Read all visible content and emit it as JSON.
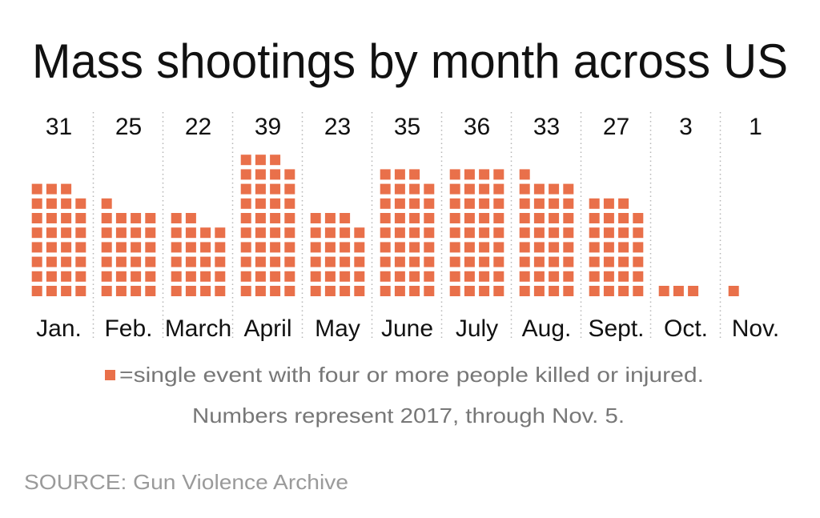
{
  "chart_data": {
    "type": "bar",
    "title": "Mass shootings by month across US",
    "categories": [
      "Jan.",
      "Feb.",
      "March",
      "April",
      "May",
      "June",
      "July",
      "Aug.",
      "Sept.",
      "Oct.",
      "Nov."
    ],
    "values": [
      31,
      25,
      22,
      39,
      23,
      35,
      36,
      33,
      27,
      3,
      1
    ],
    "legend": {
      "symbol_label": "=single event with four or more people killed or injured.",
      "note": "Numbers represent 2017, through Nov. 5."
    },
    "source": "SOURCE: Gun Violence Archive",
    "grid": false
  },
  "colors": {
    "square": "#e9704a",
    "text": "#111111",
    "legend_text": "#777777",
    "source_text": "#9a9a9a",
    "divider": "#b5b5b5"
  }
}
